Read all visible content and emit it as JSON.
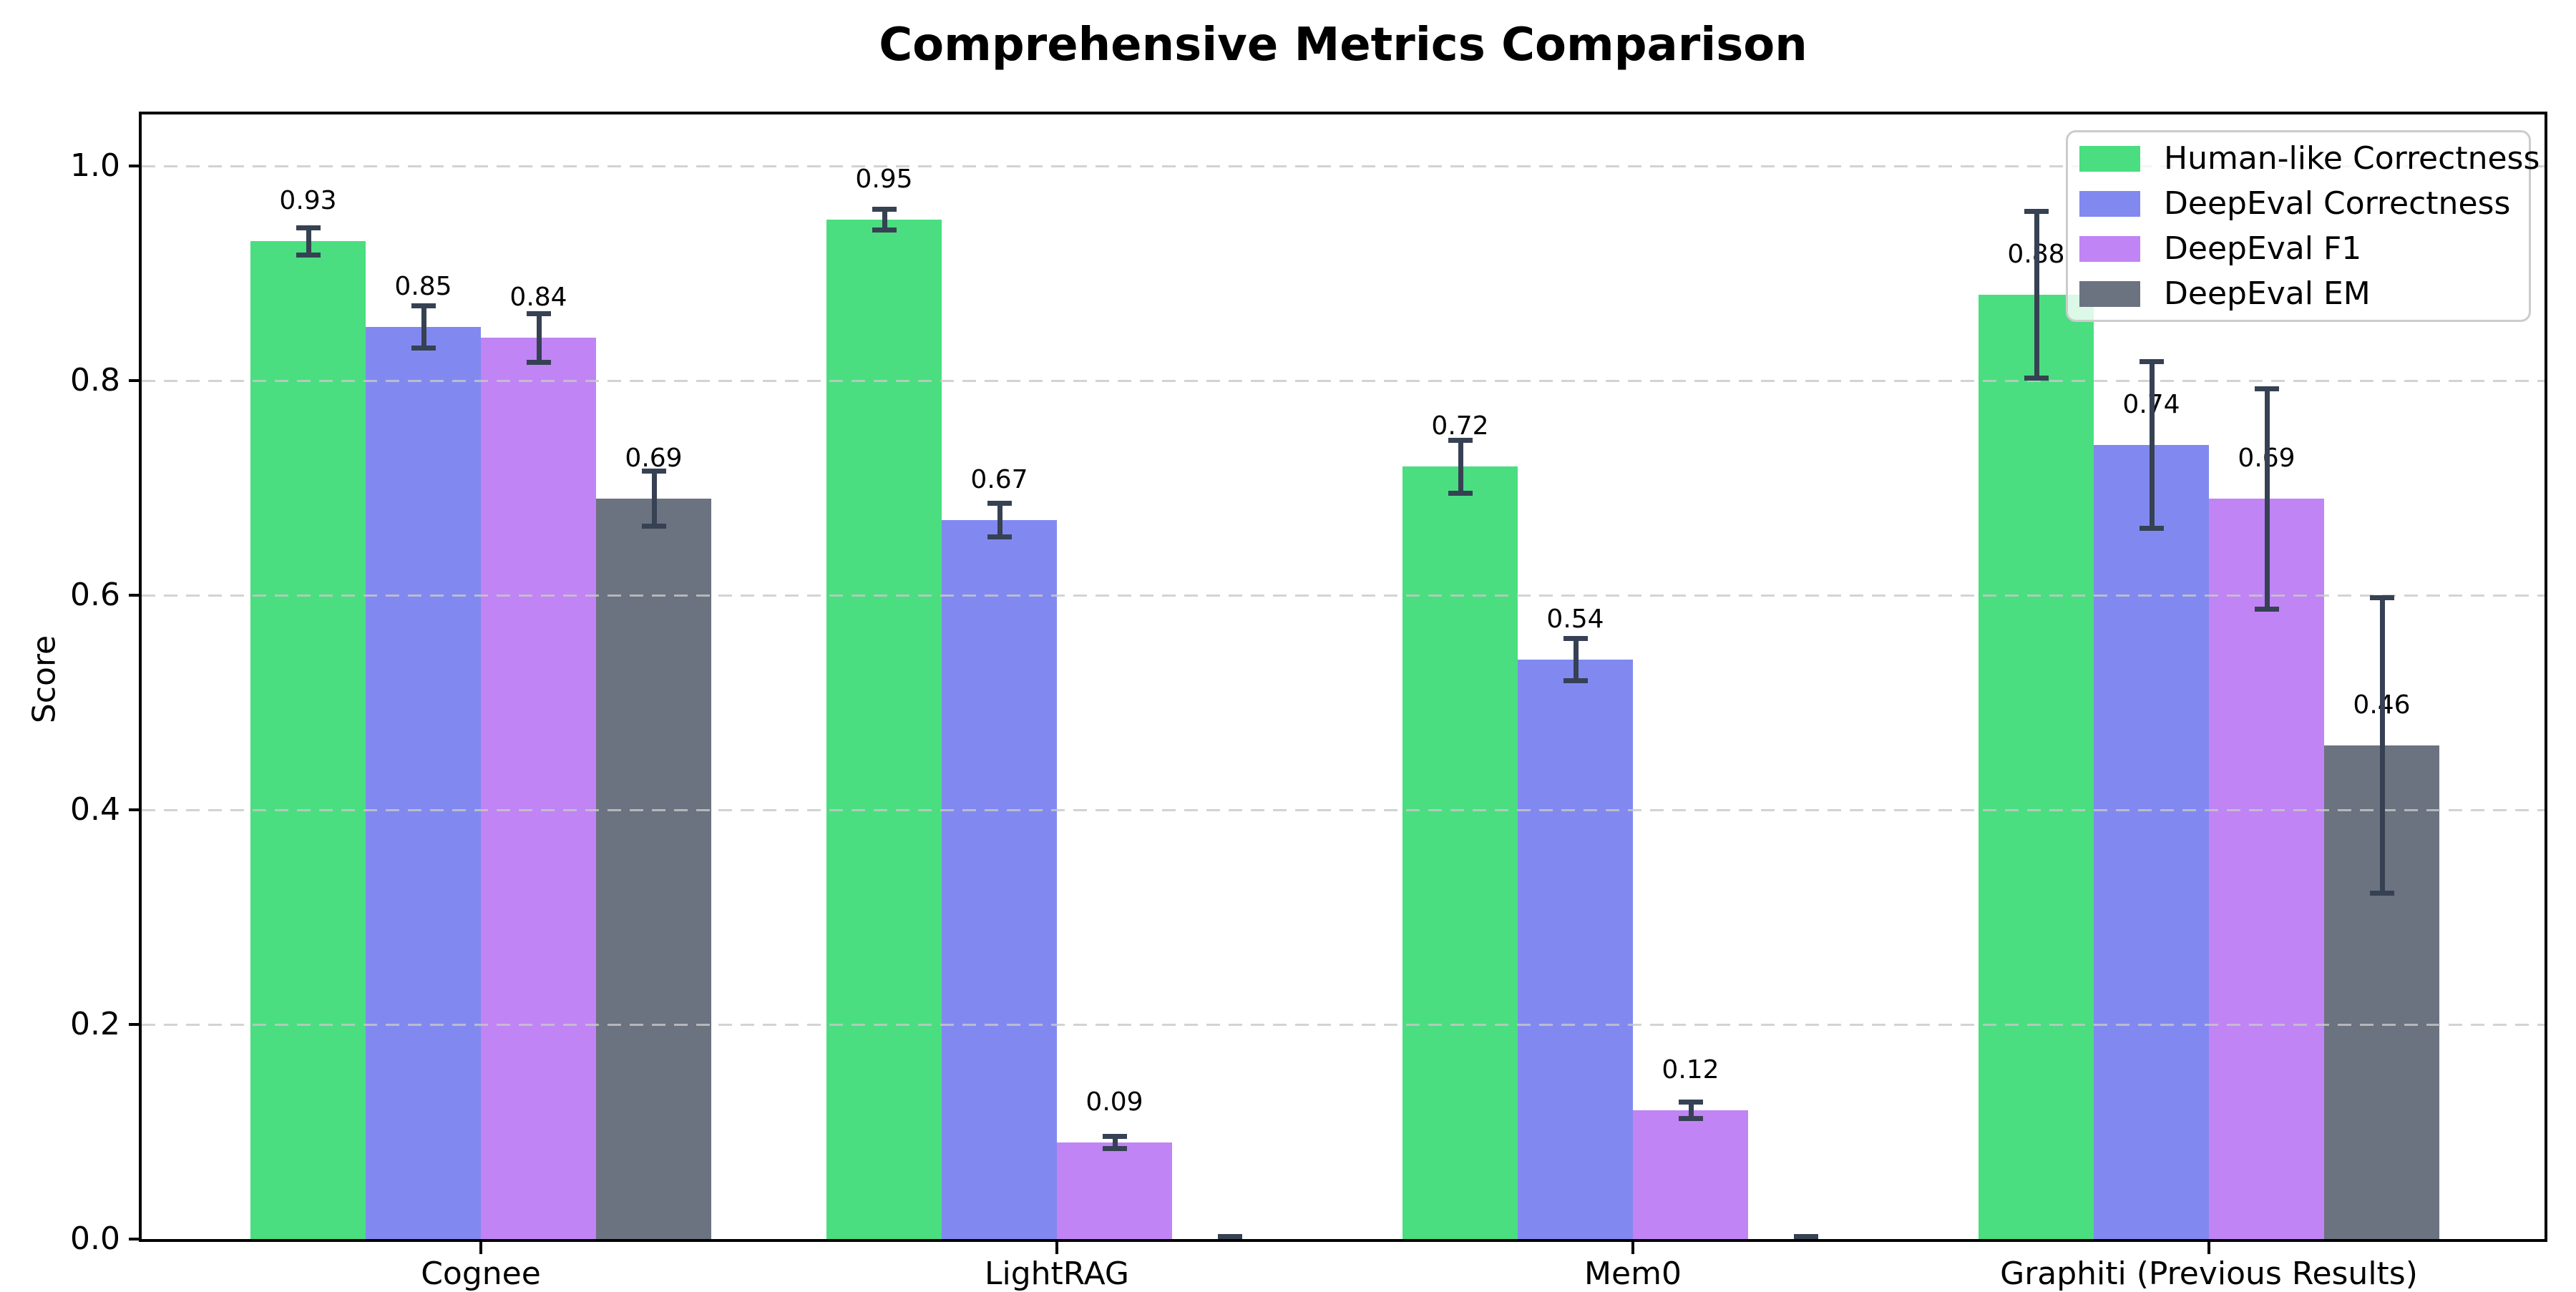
{
  "title": "Comprehensive Metrics Comparison",
  "chart_data": {
    "type": "bar",
    "title": "Comprehensive Metrics Comparison",
    "xlabel": "",
    "ylabel": "Score",
    "ylim": [
      0,
      1.05
    ],
    "yticks": [
      0.0,
      0.2,
      0.4,
      0.6,
      0.8,
      1.0
    ],
    "grid": "horizontal dashed",
    "legend_position": "upper right",
    "background_color": "#ffffff",
    "error_bar_color": "#364153",
    "grid_color": "#c8c8c8",
    "categories": [
      "Cognee",
      "LightRAG",
      "Mem0",
      "Graphiti (Previous Results)"
    ],
    "series": [
      {
        "name": "Human-like Correctness",
        "color": "#4ade80",
        "values": [
          0.93,
          0.95,
          0.72,
          0.88
        ],
        "errors": [
          0.015,
          0.012,
          0.027,
          0.08
        ],
        "labels": [
          "0.93",
          "0.95",
          "0.72",
          "0.88"
        ]
      },
      {
        "name": "DeepEval Correctness",
        "color": "#8189f0",
        "values": [
          0.85,
          0.67,
          0.54,
          0.74
        ],
        "errors": [
          0.022,
          0.018,
          0.022,
          0.08
        ],
        "labels": [
          "0.85",
          "0.67",
          "0.54",
          "0.74"
        ]
      },
      {
        "name": "DeepEval F1",
        "color": "#c084f4",
        "values": [
          0.84,
          0.09,
          0.12,
          0.69
        ],
        "errors": [
          0.025,
          0.008,
          0.01,
          0.105
        ],
        "labels": [
          "0.84",
          "0.09",
          "0.12",
          "0.69"
        ]
      },
      {
        "name": "DeepEval EM",
        "color": "#6b7280",
        "values": [
          0.69,
          0.0,
          0.0,
          0.46
        ],
        "errors": [
          0.028,
          0.005,
          0.005,
          0.14
        ],
        "labels": [
          "0.69",
          null,
          null,
          "0.46"
        ]
      }
    ]
  }
}
